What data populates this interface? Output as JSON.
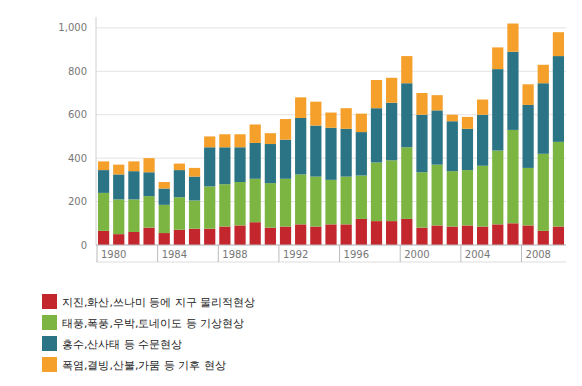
{
  "chart_data": {
    "type": "bar",
    "stacked": true,
    "grid": true,
    "legend": "bottom",
    "categories": [
      "1980",
      null,
      null,
      null,
      "1984",
      null,
      null,
      null,
      "1988",
      null,
      null,
      null,
      "1992",
      null,
      null,
      null,
      "1996",
      null,
      null,
      null,
      "2000",
      null,
      null,
      null,
      "2004",
      null,
      null,
      null,
      "2008",
      null,
      null
    ],
    "ylim": [
      0,
      1050
    ],
    "yticks": [
      0,
      200,
      400,
      600,
      800,
      {
        "value": 1000,
        "label": "1,000"
      }
    ],
    "series": [
      {
        "name": "지진,화산,쓰나미 등에 지구 물리적현상",
        "color": "#c4262e",
        "values": [
          65,
          50,
          60,
          80,
          55,
          70,
          75,
          75,
          85,
          90,
          105,
          80,
          85,
          95,
          85,
          95,
          95,
          120,
          110,
          110,
          120,
          80,
          90,
          85,
          90,
          85,
          95,
          100,
          90,
          65,
          85
        ]
      },
      {
        "name": "태풍,폭풍,우박,토네이도 등 기상현상",
        "color": "#7db543",
        "values": [
          175,
          160,
          150,
          145,
          130,
          150,
          130,
          195,
          195,
          200,
          200,
          205,
          220,
          230,
          230,
          205,
          220,
          200,
          270,
          280,
          330,
          255,
          280,
          255,
          255,
          280,
          340,
          430,
          265,
          355,
          390
        ]
      },
      {
        "name": "홍수,산사태 등 수문현상",
        "color": "#2b7485",
        "values": [
          105,
          115,
          130,
          110,
          75,
          125,
          110,
          180,
          170,
          160,
          165,
          180,
          180,
          260,
          235,
          240,
          220,
          200,
          250,
          265,
          295,
          265,
          250,
          230,
          190,
          235,
          375,
          360,
          290,
          325,
          395
        ]
      },
      {
        "name": "폭염,결빙,산불,가뭄 등 기후 현상",
        "color": "#f5a02a",
        "values": [
          40,
          45,
          45,
          65,
          30,
          30,
          40,
          50,
          60,
          60,
          85,
          50,
          95,
          95,
          110,
          70,
          95,
          85,
          130,
          115,
          125,
          100,
          70,
          30,
          55,
          70,
          100,
          130,
          95,
          85,
          110
        ]
      }
    ]
  }
}
